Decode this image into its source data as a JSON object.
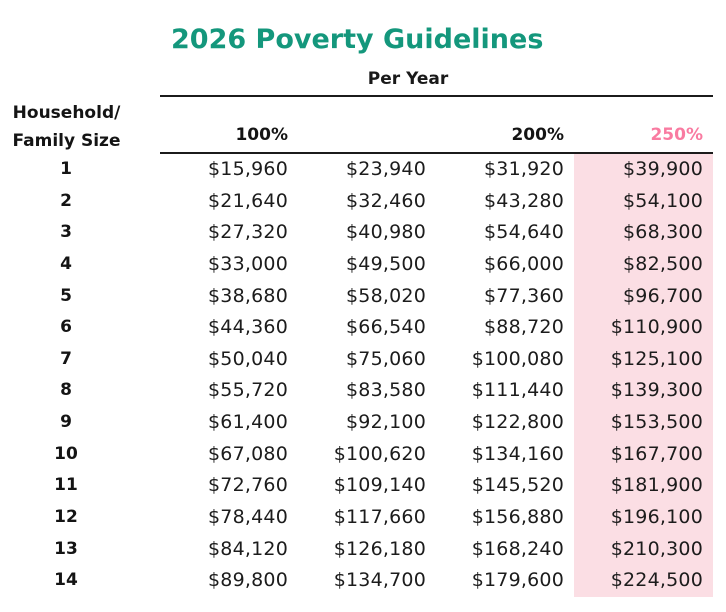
{
  "title": {
    "text": "2026 Poverty Guidelines",
    "color": "#14977C"
  },
  "table": {
    "group_header": "Per Year",
    "row_header_line1": "Household/",
    "row_header_line2": "Family Size",
    "columns": [
      {
        "label": "100%",
        "highlight": false
      },
      {
        "label": "",
        "highlight": false
      },
      {
        "label": "200%",
        "highlight": false
      },
      {
        "label": "250%",
        "highlight": true
      }
    ],
    "highlight": {
      "header_text_color": "#F97BA1",
      "column_bg_color": "#FBDEE4"
    },
    "rows": [
      {
        "size": "1",
        "values": [
          "$15,960",
          "$23,940",
          "$31,920",
          "$39,900"
        ]
      },
      {
        "size": "2",
        "values": [
          "$21,640",
          "$32,460",
          "$43,280",
          "$54,100"
        ]
      },
      {
        "size": "3",
        "values": [
          "$27,320",
          "$40,980",
          "$54,640",
          "$68,300"
        ]
      },
      {
        "size": "4",
        "values": [
          "$33,000",
          "$49,500",
          "$66,000",
          "$82,500"
        ]
      },
      {
        "size": "5",
        "values": [
          "$38,680",
          "$58,020",
          "$77,360",
          "$96,700"
        ]
      },
      {
        "size": "6",
        "values": [
          "$44,360",
          "$66,540",
          "$88,720",
          "$110,900"
        ]
      },
      {
        "size": "7",
        "values": [
          "$50,040",
          "$75,060",
          "$100,080",
          "$125,100"
        ]
      },
      {
        "size": "8",
        "values": [
          "$55,720",
          "$83,580",
          "$111,440",
          "$139,300"
        ]
      },
      {
        "size": "9",
        "values": [
          "$61,400",
          "$92,100",
          "$122,800",
          "$153,500"
        ]
      },
      {
        "size": "10",
        "values": [
          "$67,080",
          "$100,620",
          "$134,160",
          "$167,700"
        ]
      },
      {
        "size": "11",
        "values": [
          "$72,760",
          "$109,140",
          "$145,520",
          "$181,900"
        ]
      },
      {
        "size": "12",
        "values": [
          "$78,440",
          "$117,660",
          "$156,880",
          "$196,100"
        ]
      },
      {
        "size": "13",
        "values": [
          "$84,120",
          "$126,180",
          "$168,240",
          "$210,300"
        ]
      },
      {
        "size": "14",
        "values": [
          "$89,800",
          "$134,700",
          "$179,600",
          "$224,500"
        ]
      }
    ]
  },
  "chart_data": {
    "type": "table",
    "title": "2026 Poverty Guidelines",
    "group_header": "Per Year",
    "row_label": "Household/Family Size",
    "columns": [
      "100%",
      "",
      "200%",
      "250%"
    ],
    "highlighted_column": "250%",
    "household_sizes": [
      1,
      2,
      3,
      4,
      5,
      6,
      7,
      8,
      9,
      10,
      11,
      12,
      13,
      14
    ],
    "values": [
      [
        15960,
        23940,
        31920,
        39900
      ],
      [
        21640,
        32460,
        43280,
        54100
      ],
      [
        27320,
        40980,
        54640,
        68300
      ],
      [
        33000,
        49500,
        66000,
        82500
      ],
      [
        38680,
        58020,
        77360,
        96700
      ],
      [
        44360,
        66540,
        88720,
        110900
      ],
      [
        50040,
        75060,
        100080,
        125100
      ],
      [
        55720,
        83580,
        111440,
        139300
      ],
      [
        61400,
        92100,
        122800,
        153500
      ],
      [
        67080,
        100620,
        134160,
        167700
      ],
      [
        72760,
        109140,
        145520,
        181900
      ],
      [
        78440,
        117660,
        156880,
        196100
      ],
      [
        84120,
        126180,
        168240,
        210300
      ],
      [
        89800,
        134700,
        179600,
        224500
      ]
    ]
  }
}
